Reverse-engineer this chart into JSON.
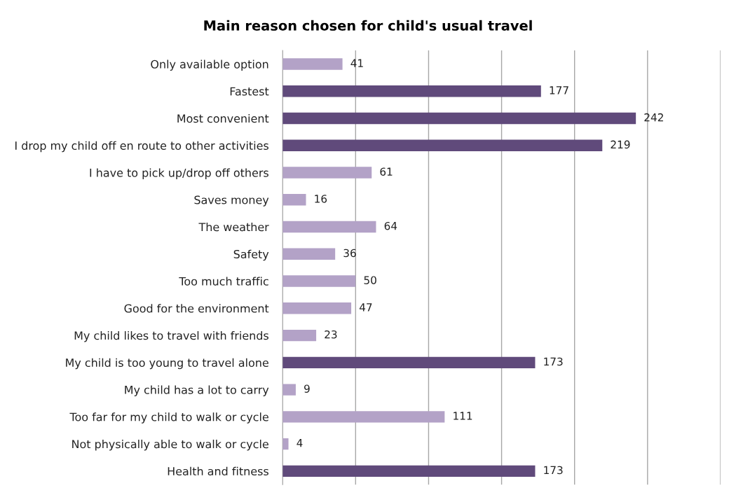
{
  "chart_data": {
    "type": "bar",
    "orientation": "horizontal",
    "title": "Main reason chosen for child's usual travel",
    "categories": [
      "Only available option",
      "Fastest",
      "Most convenient",
      "I drop my child off en route to other activities",
      "I have to pick up/drop off others",
      "Saves money",
      "The weather",
      "Safety",
      "Too much traffic",
      "Good for the environment",
      "My child likes to travel with friends",
      "My child is too young to travel alone",
      "My child has a lot to carry",
      "Too far for my child to walk or cycle",
      "Not physically able to walk or cycle",
      "Health and fitness"
    ],
    "values": [
      41,
      177,
      242,
      219,
      61,
      16,
      64,
      36,
      50,
      47,
      23,
      173,
      9,
      111,
      4,
      173
    ],
    "colors": [
      "#b3a2c7",
      "#604a7b",
      "#604a7b",
      "#604a7b",
      "#b3a2c7",
      "#b3a2c7",
      "#b3a2c7",
      "#b3a2c7",
      "#b3a2c7",
      "#b3a2c7",
      "#b3a2c7",
      "#604a7b",
      "#b3a2c7",
      "#b3a2c7",
      "#b3a2c7",
      "#604a7b"
    ],
    "xlim": [
      0,
      300
    ],
    "xticks": [
      {
        "value": 0,
        "label": null
      },
      {
        "value": 50,
        "label": null
      },
      {
        "value": 100,
        "label": null
      },
      {
        "value": 150,
        "label": null
      },
      {
        "value": 200,
        "label": null
      },
      {
        "value": 250,
        "label": null
      },
      {
        "value": 300,
        "label": null
      }
    ],
    "tick_labels": "y",
    "grid": "x",
    "data_labels": true
  }
}
